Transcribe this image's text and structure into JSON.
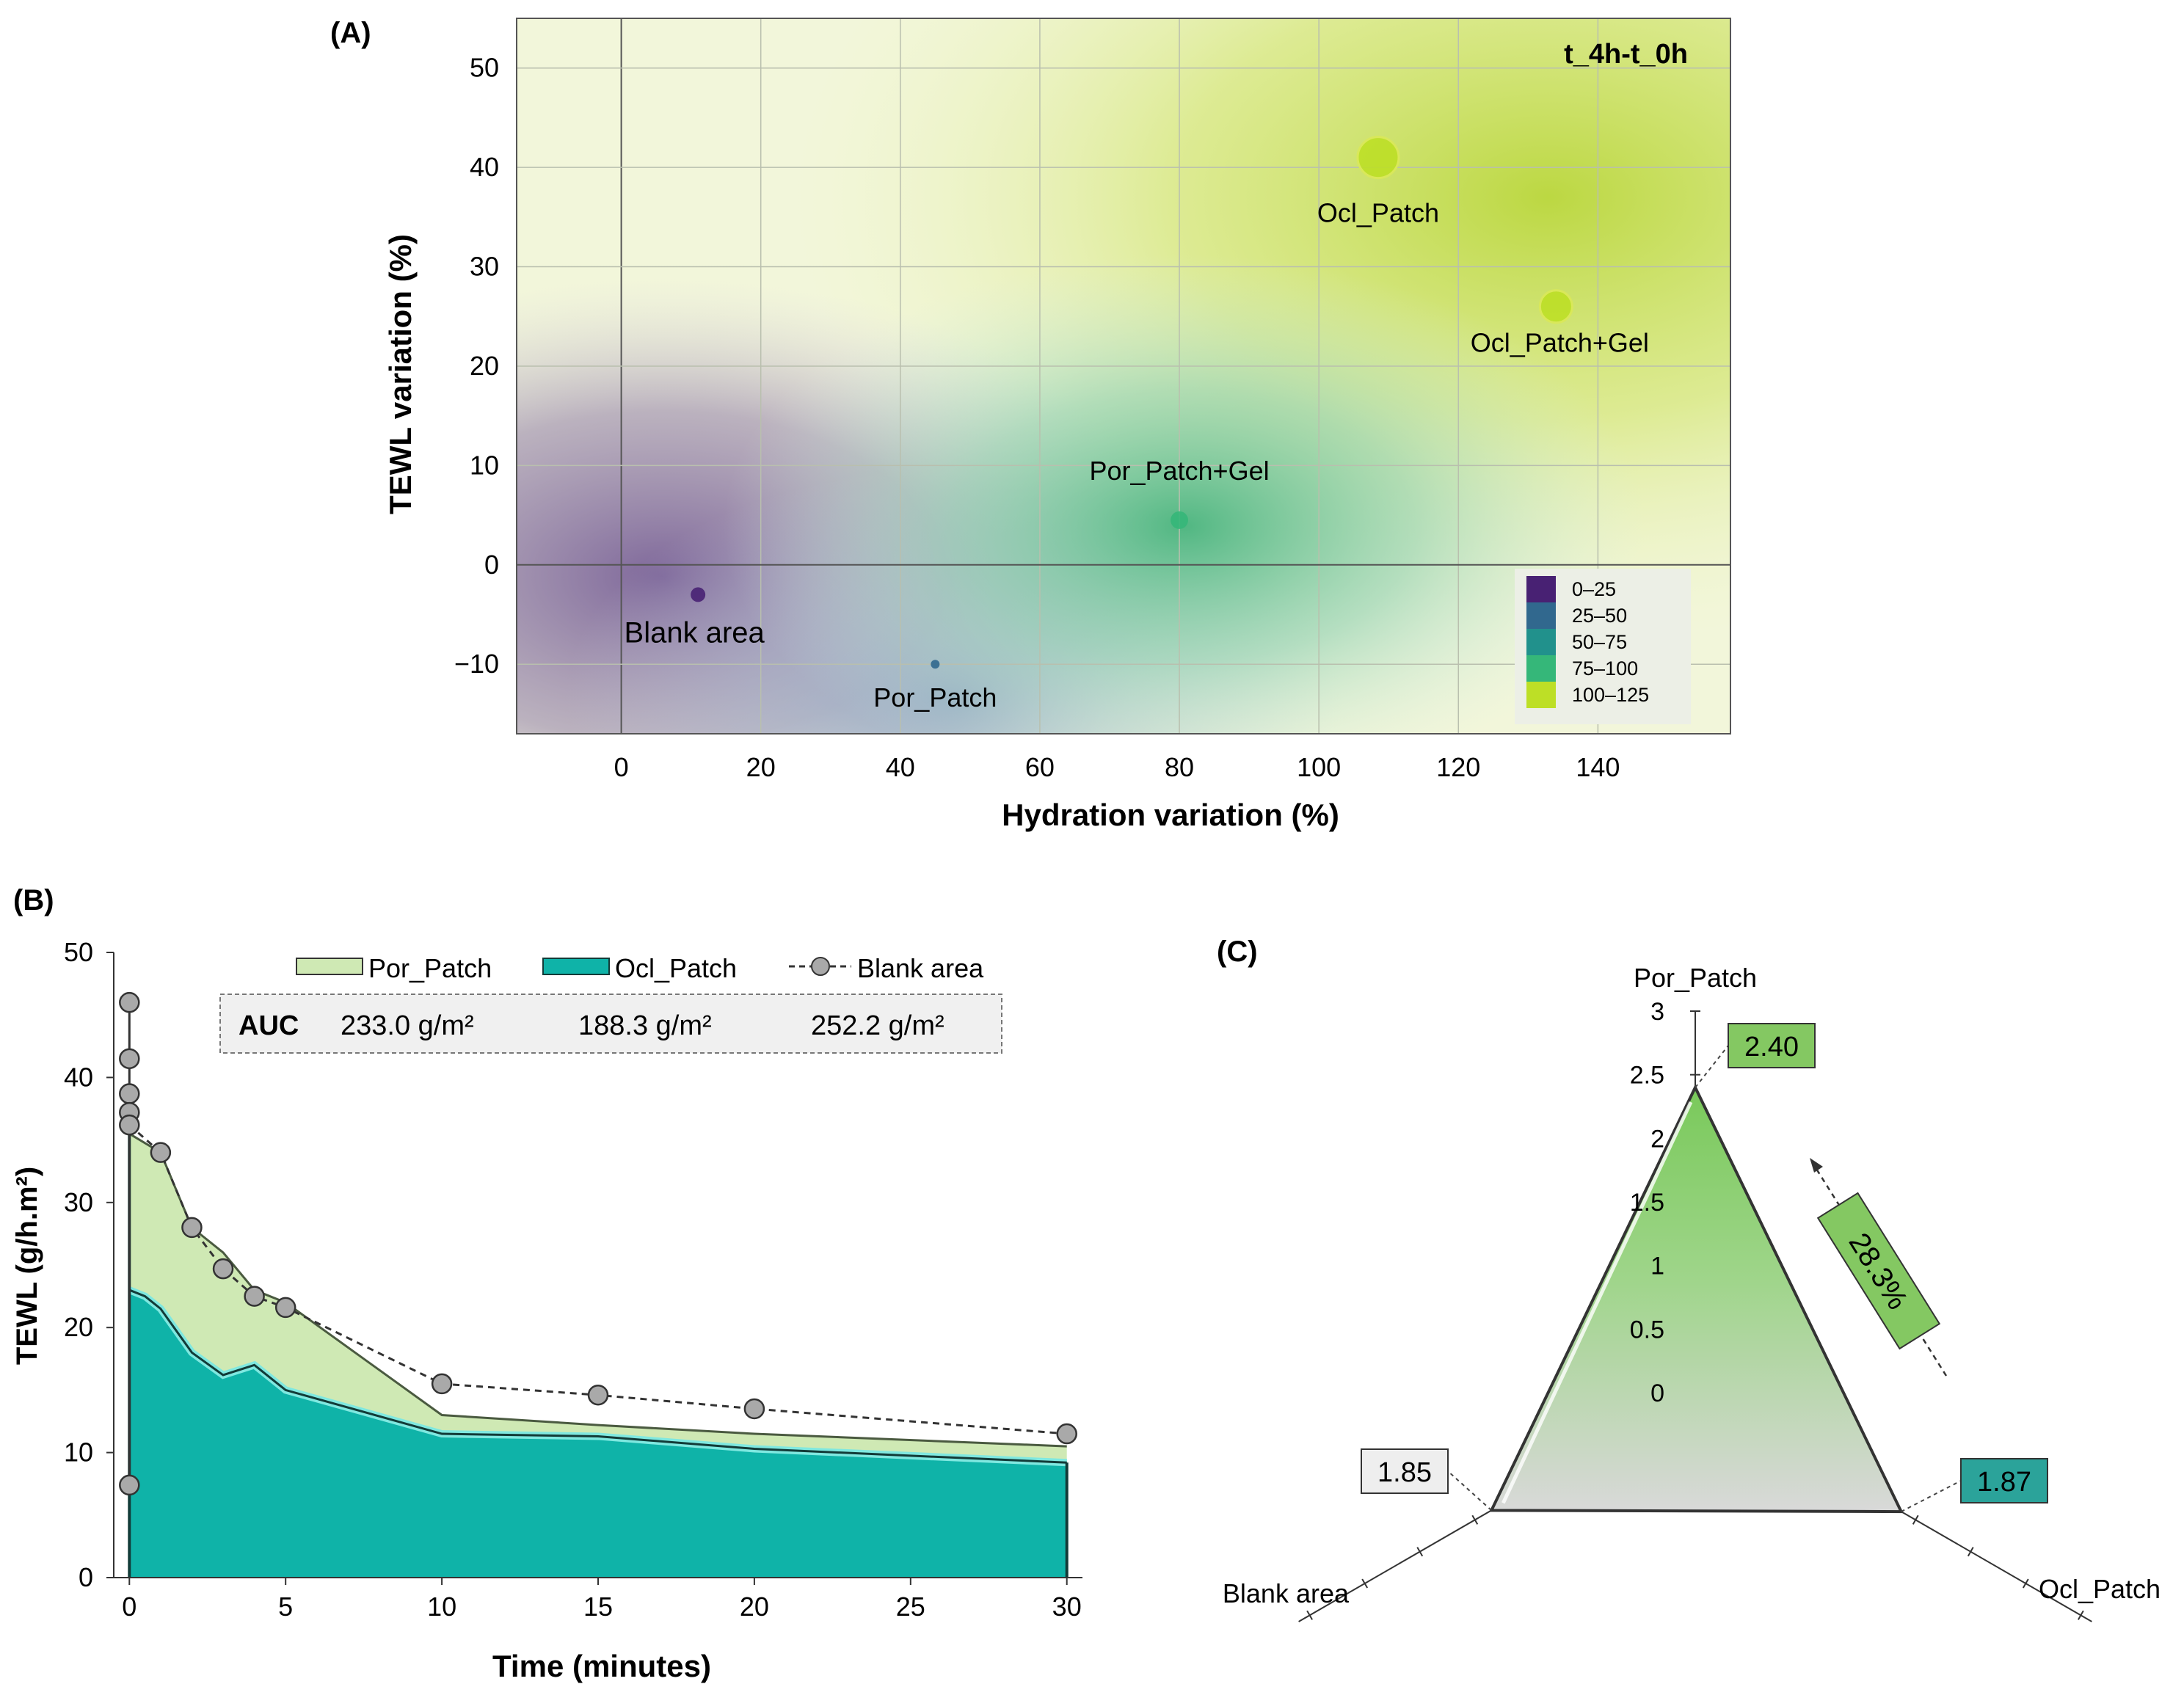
{
  "panel_labels": {
    "a": "(A)",
    "b": "(B)",
    "c": "(C)"
  },
  "colors": {
    "viridis": [
      "#482173",
      "#31688e",
      "#21918c",
      "#35b779",
      "#bddf26"
    ],
    "por_fill": "#cfe9b4",
    "ocl_fill": "#0fb3a8",
    "ocl_line": "#123b38",
    "blank_marker": "#a9a9a9",
    "radar_green": "#79c95a",
    "radar_gray": "#d9d9d9",
    "label_green": "#84c862",
    "label_teal": "#2ba39a"
  },
  "chart_data": [
    {
      "type": "scatter",
      "panel": "A",
      "title": "t_4h-t_0h",
      "xlabel": "Hydration variation (%)",
      "ylabel": "TEWL variation (%)",
      "xlim": [
        -15,
        159
      ],
      "ylim": [
        -17,
        55
      ],
      "xticks": [
        0,
        20,
        40,
        60,
        80,
        100,
        120,
        140
      ],
      "yticks": [
        -10,
        0,
        10,
        20,
        30,
        40,
        50
      ],
      "grid": true,
      "background": "viridis-style contour gradient",
      "points": [
        {
          "label": "Blank area",
          "x": 11,
          "y": -3,
          "size": 10,
          "color_class": "0–25"
        },
        {
          "label": "Por_Patch",
          "x": 45,
          "y": -10,
          "size": 6,
          "color_class": "25–50"
        },
        {
          "label": "Por_Patch+Gel",
          "x": 80,
          "y": 4.5,
          "size": 12,
          "color_class": "75–100"
        },
        {
          "label": "Ocl_Patch",
          "x": 108.5,
          "y": 41,
          "size": 28,
          "color_class": "100–125"
        },
        {
          "label": "Ocl_Patch+Gel",
          "x": 134,
          "y": 26,
          "size": 22,
          "color_class": "100–125"
        }
      ],
      "legend": {
        "position": "bottom-right",
        "entries": [
          "0–25",
          "25–50",
          "50–75",
          "75–100",
          "100–125"
        ]
      }
    },
    {
      "type": "area",
      "panel": "B",
      "xlabel": "Time (minutes)",
      "ylabel": "TEWL (g/h.m²)",
      "xlim": [
        -0.5,
        30.5
      ],
      "ylim": [
        0,
        50
      ],
      "xticks": [
        0,
        5,
        10,
        15,
        20,
        25,
        30
      ],
      "yticks": [
        0,
        10,
        20,
        30,
        40,
        50
      ],
      "series": [
        {
          "name": "Por_Patch",
          "style": "area",
          "x": [
            0,
            1,
            2,
            3,
            4,
            5,
            10,
            15,
            20,
            30
          ],
          "y": [
            35.5,
            34,
            28,
            26,
            23,
            22,
            13,
            12.2,
            11.5,
            10.5
          ]
        },
        {
          "name": "Ocl_Patch",
          "style": "area",
          "x": [
            0,
            0.5,
            1,
            2,
            3,
            4,
            5,
            10,
            15,
            20,
            30
          ],
          "y": [
            23,
            22.5,
            21.5,
            18,
            16.2,
            17,
            15,
            11.5,
            11.3,
            10.3,
            9.2
          ]
        },
        {
          "name": "Blank area",
          "style": "dashed-line-markers",
          "x": [
            0,
            0,
            0,
            0,
            0,
            0,
            1,
            2,
            3,
            4,
            5,
            10,
            15,
            20,
            30
          ],
          "y": [
            7.4,
            46,
            41.5,
            38.7,
            37.2,
            36.2,
            34,
            28,
            24.7,
            22.5,
            21.6,
            15.5,
            14.6,
            13.5,
            11.5
          ]
        }
      ],
      "legend": {
        "position": "top",
        "entries": [
          "Por_Patch",
          "Ocl_Patch",
          "Blank area"
        ]
      },
      "annotations": {
        "auc_label": "AUC",
        "auc_values": [
          "233.0 g/m²",
          "188.3 g/m²",
          "252.2 g/m²"
        ]
      }
    },
    {
      "type": "radar",
      "panel": "C",
      "axes": [
        "Por_Patch",
        "Ocl_Patch",
        "Blank area"
      ],
      "values": [
        2.4,
        1.87,
        1.85
      ],
      "value_labels": [
        "2.40",
        "1.87",
        "1.85"
      ],
      "rlim": [
        0,
        3
      ],
      "rticks": [
        "0",
        "0.5",
        "1",
        "1.5",
        "2",
        "2.5",
        "3"
      ],
      "annotation": "28.3%"
    }
  ]
}
